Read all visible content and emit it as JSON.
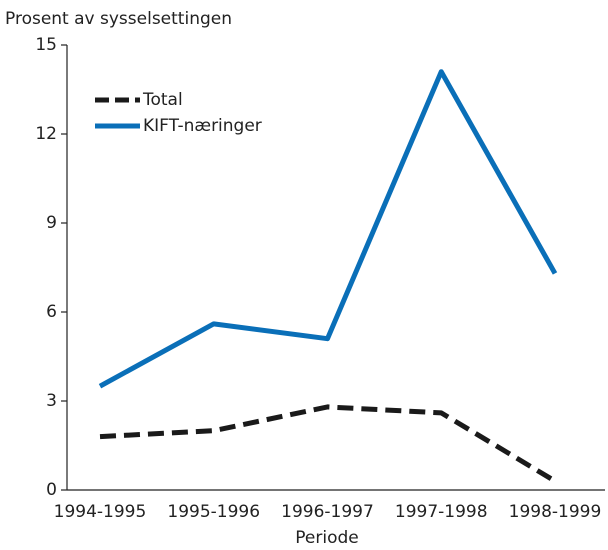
{
  "chart_data": {
    "type": "line",
    "title": "Prosent av sysselsettingen",
    "x_label": "Periode",
    "categories": [
      "1994-1995",
      "1995-1996",
      "1996-1997",
      "1997-1998",
      "1998-1999"
    ],
    "series": [
      {
        "name": "Total",
        "color": "#1a1a1a",
        "dash": true,
        "values": [
          1.8,
          2.0,
          2.8,
          2.6,
          0.3
        ]
      },
      {
        "name": "KIFT-næringer",
        "color": "#0a6fb8",
        "dash": false,
        "values": [
          3.5,
          5.6,
          5.1,
          14.1,
          7.3
        ]
      }
    ],
    "ylim": [
      0,
      15
    ],
    "yticks": [
      0,
      3,
      6,
      9,
      12,
      15
    ]
  }
}
